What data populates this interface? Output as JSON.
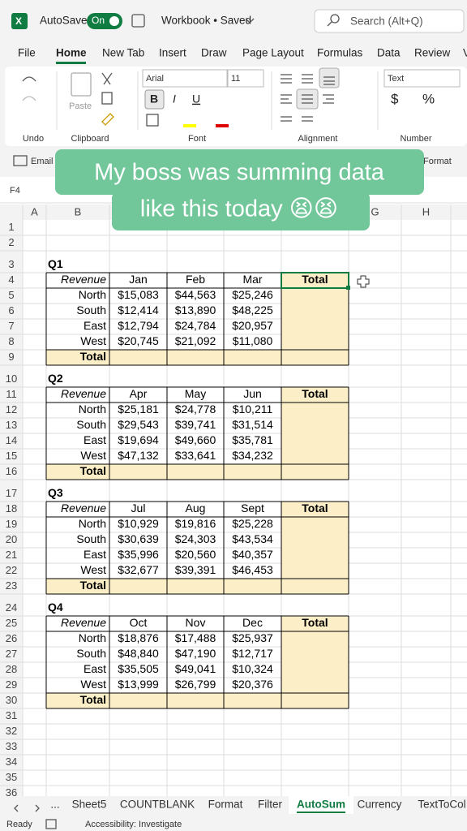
{
  "title_bar": {
    "autosave": "AutoSave",
    "toggle": "On",
    "workbook": "Workbook • Saved",
    "search": "Search (Alt+Q)"
  },
  "menu_tabs": [
    "File",
    "Home",
    "New Tab",
    "Insert",
    "Draw",
    "Page Layout",
    "Formulas",
    "Data",
    "Review",
    "V"
  ],
  "ribbon": {
    "paste": "Paste",
    "font_name": "Arial",
    "font_size": "11",
    "number_format": "Text",
    "bold": "B",
    "italic": "I",
    "underline": "U",
    "currency": "$",
    "percent": "%",
    "groups": [
      "Undo",
      "Clipboard",
      "Font",
      "Alignment",
      "Number"
    ],
    "email": "Email",
    "format": "Format"
  },
  "caption": [
    "My boss was summing data",
    "like this today 😫😫"
  ],
  "name_box": "F4",
  "sheet": {
    "columns": [
      "A",
      "B",
      null,
      null,
      null,
      null,
      "G",
      "H"
    ],
    "row_numbers": [
      1,
      2,
      3,
      4,
      5,
      6,
      7,
      8,
      9,
      10,
      11,
      12,
      13,
      14,
      15,
      16,
      17,
      18,
      19,
      20,
      21,
      22,
      23,
      24,
      25,
      26,
      27,
      28,
      29,
      30,
      31,
      32,
      33,
      34,
      35,
      36
    ],
    "quarters": [
      {
        "label": "Q1",
        "header": [
          "Revenue",
          "Jan",
          "Feb",
          "Mar",
          "Total"
        ],
        "rows": [
          [
            "North",
            "$15,083",
            "$44,563",
            "$25,246"
          ],
          [
            "South",
            "$12,414",
            "$13,890",
            "$48,225"
          ],
          [
            "East",
            "$12,794",
            "$24,784",
            "$20,957"
          ],
          [
            "West",
            "$20,745",
            "$21,092",
            "$11,080"
          ]
        ],
        "total": "Total"
      },
      {
        "label": "Q2",
        "header": [
          "Revenue",
          "Apr",
          "May",
          "Jun",
          "Total"
        ],
        "rows": [
          [
            "North",
            "$25,181",
            "$24,778",
            "$10,211"
          ],
          [
            "South",
            "$29,543",
            "$39,741",
            "$31,514"
          ],
          [
            "East",
            "$19,694",
            "$49,660",
            "$35,781"
          ],
          [
            "West",
            "$47,132",
            "$33,641",
            "$34,232"
          ]
        ],
        "total": "Total"
      },
      {
        "label": "Q3",
        "header": [
          "Revenue",
          "Jul",
          "Aug",
          "Sept",
          "Total"
        ],
        "rows": [
          [
            "North",
            "$10,929",
            "$19,816",
            "$25,228"
          ],
          [
            "South",
            "$30,639",
            "$24,303",
            "$43,534"
          ],
          [
            "East",
            "$35,996",
            "$20,560",
            "$40,357"
          ],
          [
            "West",
            "$32,677",
            "$39,391",
            "$46,453"
          ]
        ],
        "total": "Total"
      },
      {
        "label": "Q4",
        "header": [
          "Revenue",
          "Oct",
          "Nov",
          "Dec",
          "Total"
        ],
        "rows": [
          [
            "North",
            "$18,876",
            "$17,488",
            "$25,937"
          ],
          [
            "South",
            "$48,840",
            "$47,190",
            "$12,717"
          ],
          [
            "East",
            "$35,505",
            "$49,041",
            "$10,324"
          ],
          [
            "West",
            "$13,999",
            "$26,799",
            "$20,376"
          ]
        ],
        "total": "Total"
      }
    ]
  },
  "sheet_tabs": [
    "...",
    "Sheet5",
    "COUNTBLANK",
    "Format",
    "Filter",
    "AutoSum",
    "Currency",
    "TextToCol"
  ],
  "status": {
    "ready": "Ready",
    "accessibility": "Accessibility: Investigate"
  }
}
